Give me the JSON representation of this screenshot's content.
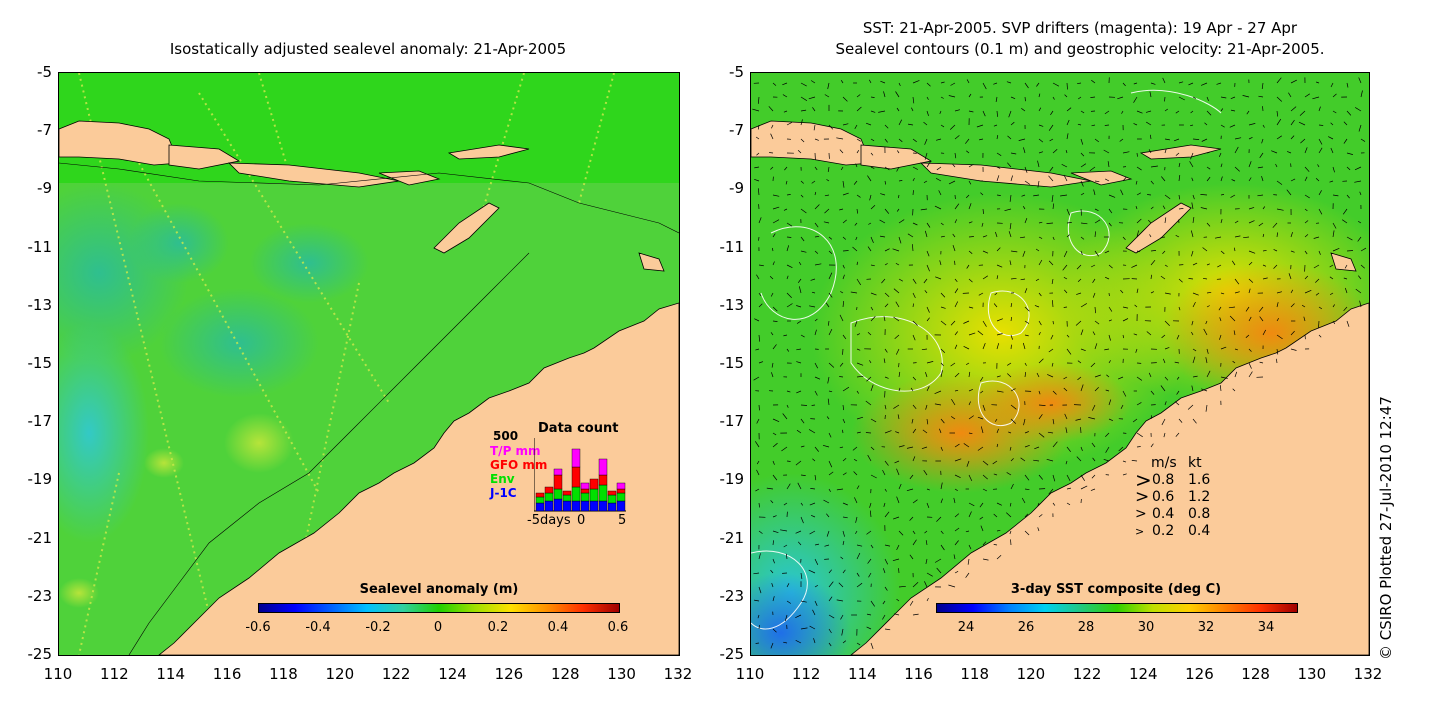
{
  "left_map": {
    "title": "Isostatically adjusted sealevel anomaly: 21-Apr-2005",
    "y_ticks": [
      "-5",
      "-7",
      "-9",
      "-11",
      "-13",
      "-15",
      "-17",
      "-19",
      "-21",
      "-23",
      "-25"
    ],
    "x_ticks": [
      "110",
      "112",
      "114",
      "116",
      "118",
      "120",
      "122",
      "124",
      "126",
      "128",
      "130",
      "132"
    ],
    "colorbar": {
      "title": "Sealevel anomaly (m)",
      "ticks": [
        "-0.6",
        "-0.4",
        "-0.2",
        "0",
        "0.2",
        "0.4",
        "0.6"
      ]
    },
    "inset": {
      "title": "Data count",
      "max_label": "500",
      "series": [
        {
          "label": "T/P mm",
          "color": "#ff00ff"
        },
        {
          "label": "GFO mm",
          "color": "#ff0000"
        },
        {
          "label": "Env",
          "color": "#00e000"
        },
        {
          "label": "J-1C",
          "color": "#0000ff"
        }
      ],
      "x_labels": [
        "-5days",
        "0",
        "5"
      ]
    }
  },
  "right_map": {
    "title_line1": "SST: 21-Apr-2005. SVP drifters (magenta): 19 Apr - 27 Apr",
    "title_line2": "Sealevel contours (0.1 m) and geostrophic velocity: 21-Apr-2005.",
    "y_ticks": [
      "-5",
      "-7",
      "-9",
      "-11",
      "-13",
      "-15",
      "-17",
      "-19",
      "-21",
      "-23",
      "-25"
    ],
    "x_ticks": [
      "110",
      "112",
      "114",
      "116",
      "118",
      "120",
      "122",
      "124",
      "126",
      "128",
      "130",
      "132"
    ],
    "colorbar": {
      "title": "3-day SST composite (deg C)",
      "ticks": [
        "24",
        "26",
        "28",
        "30",
        "32",
        "34"
      ]
    },
    "velocity_legend": {
      "header_ms": "m/s",
      "header_kt": "kt",
      "rows": [
        {
          "ms": "0.8",
          "kt": "1.6"
        },
        {
          "ms": "0.6",
          "kt": "1.2"
        },
        {
          "ms": "0.4",
          "kt": "0.8"
        },
        {
          "ms": "0.2",
          "kt": "0.4"
        }
      ]
    }
  },
  "credit": "© CSIRO Plotted 27-Jul-2010 12:47"
}
